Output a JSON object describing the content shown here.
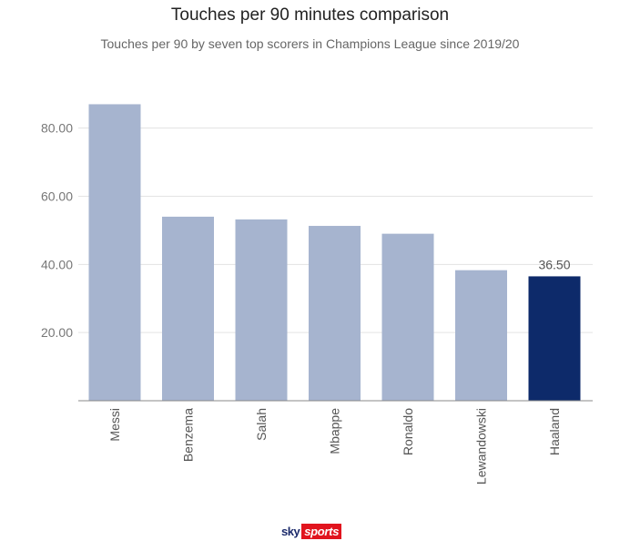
{
  "header": {
    "title": "Touches per 90 minutes comparison",
    "subtitle": "Touches per 90 by seven top scorers in Champions League since 2019/20"
  },
  "logo": {
    "sky": "sky",
    "sports": "sports"
  },
  "colors": {
    "bar": "#a6b4cf",
    "highlight": "#0d2a6a",
    "grid": "#e3e3e3",
    "axis": "#888888"
  },
  "chart_data": {
    "type": "bar",
    "title": "Touches per 90 minutes comparison",
    "subtitle": "Touches per 90 by seven top scorers in Champions League since 2019/20",
    "xlabel": "",
    "ylabel": "",
    "categories": [
      "Messi",
      "Benzema",
      "Salah",
      "Mbappe",
      "Ronaldo",
      "Lewandowski",
      "Haaland"
    ],
    "values": [
      87.0,
      54.0,
      53.2,
      51.3,
      49.0,
      38.3,
      36.5
    ],
    "highlight": "Haaland",
    "data_labels": [
      {
        "category": "Haaland",
        "text": "36.50"
      }
    ],
    "yticks": [
      20,
      40,
      60,
      80
    ],
    "ytick_labels": [
      "20.00",
      "40.00",
      "60.00",
      "80.00"
    ],
    "ylim": [
      0,
      88
    ],
    "grid": true,
    "legend": "none"
  }
}
